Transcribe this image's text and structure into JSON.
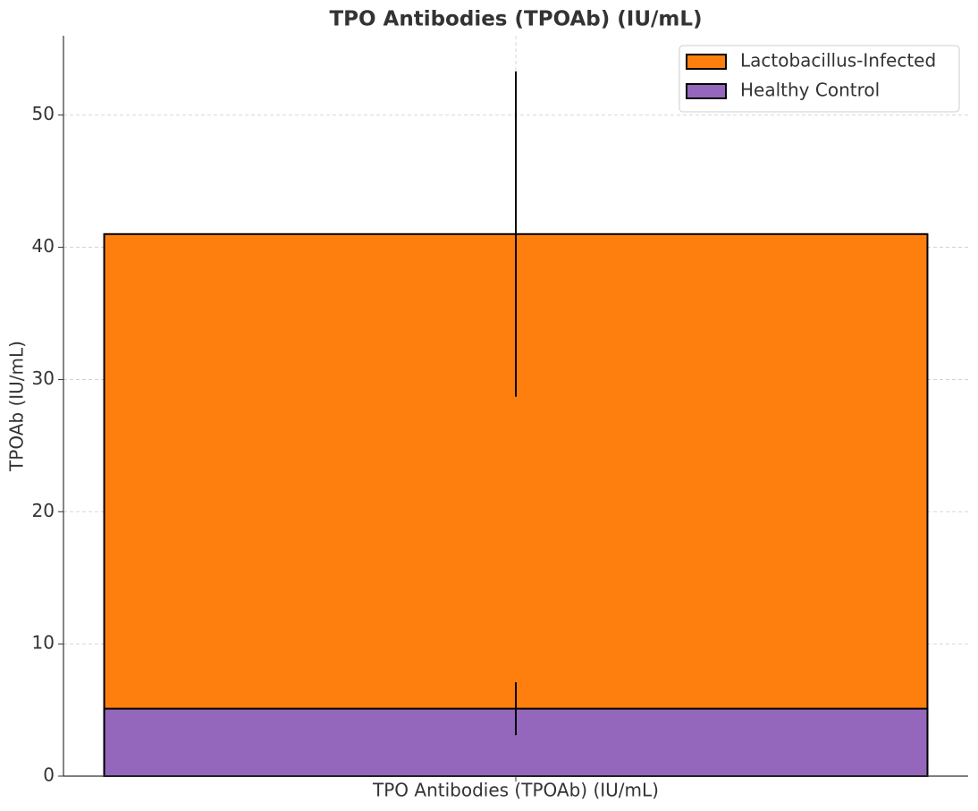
{
  "chart_data": {
    "type": "bar",
    "title": "TPO Antibodies (TPOAb) (IU/mL)",
    "y_label": "TPOAb (IU/mL)",
    "categories": [
      "TPO Antibodies (TPOAb) (IU/mL)"
    ],
    "series": [
      {
        "name": "Lactobacillus-Infected",
        "color": "#ff7f0e",
        "values": [
          41
        ],
        "errors": [
          12.3
        ]
      },
      {
        "name": "Healthy Control",
        "color": "#9467bd",
        "values": [
          5.1
        ],
        "errors": [
          2
        ]
      }
    ],
    "ylim": [
      0,
      56
    ],
    "yticks": [
      0,
      10,
      20,
      30,
      40,
      50
    ],
    "grid": true,
    "legend": "upper right"
  }
}
